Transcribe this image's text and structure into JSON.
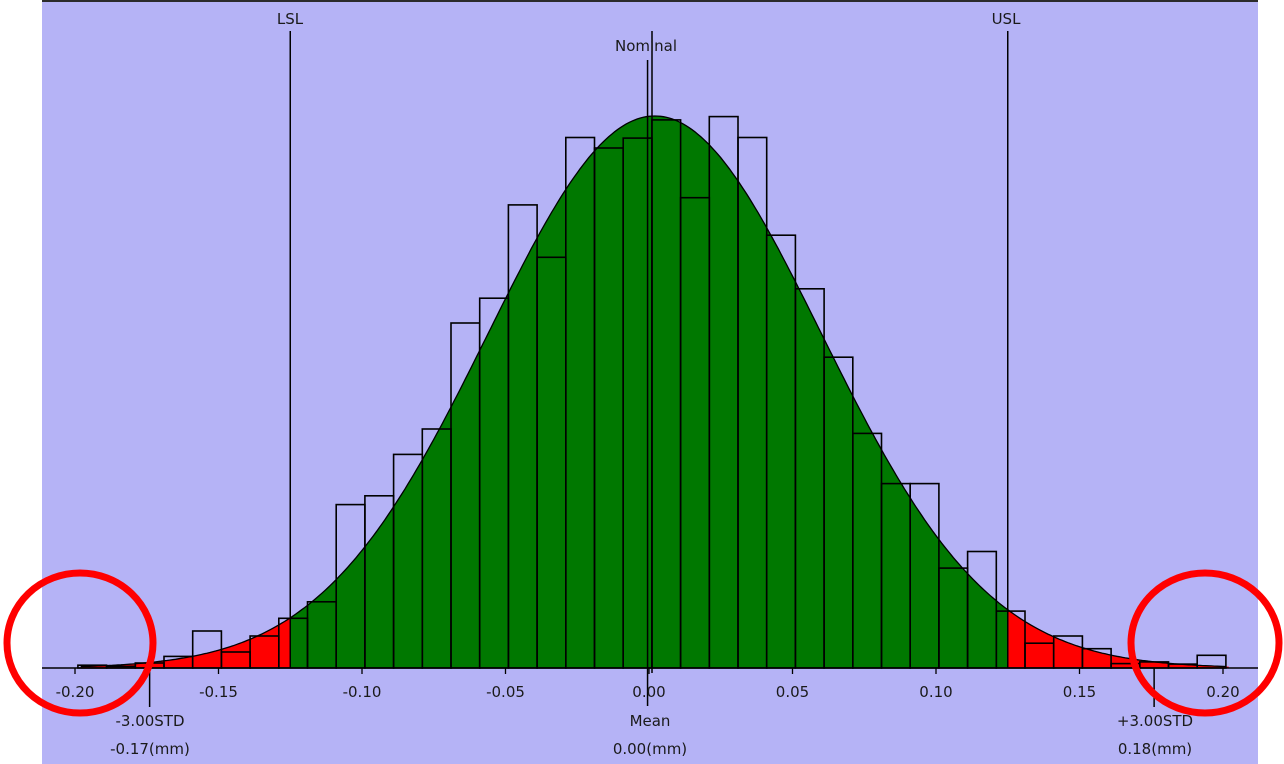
{
  "chart_data": {
    "type": "bar",
    "subtype": "histogram-with-normal-curve",
    "title": "",
    "xlabel": "",
    "ylabel": "",
    "xlim": [
      -0.2,
      0.2
    ],
    "x_ticks": [
      "-0.20",
      "-0.15",
      "-0.10",
      "-0.05",
      "0.00",
      "0.05",
      "0.10",
      "0.15",
      "0.20"
    ],
    "x_tick_values": [
      -0.2,
      -0.15,
      -0.1,
      -0.05,
      0.0,
      0.05,
      0.1,
      0.15,
      0.2
    ],
    "grid": false,
    "bin_width": 0.01,
    "bin_start": -0.199,
    "values_relative_to_curve_peak": [
      0.005,
      0.003,
      0.009,
      0.021,
      0.067,
      0.029,
      0.058,
      0.09,
      0.12,
      0.296,
      0.312,
      0.387,
      0.433,
      0.625,
      0.67,
      0.839,
      0.744,
      0.961,
      0.942,
      0.96,
      0.993,
      0.852,
      0.999,
      0.961,
      0.784,
      0.687,
      0.563,
      0.425,
      0.334,
      0.334,
      0.181,
      0.211,
      0.103,
      0.045,
      0.058,
      0.035,
      0.008,
      0.011,
      0.007,
      0.023
    ],
    "normal_curve": {
      "mean": 0.002,
      "std": 0.058
    },
    "markers": {
      "lsl": {
        "label": "LSL",
        "value": -0.125
      },
      "usl": {
        "label": "USL",
        "value": 0.125
      },
      "nominal": {
        "label": "Nominal",
        "value": 0.0
      }
    },
    "bottom_markers": {
      "minus3": {
        "label": "-3.00STD",
        "value_text": "-0.17(mm)",
        "value": -0.174
      },
      "mean": {
        "label": "Mean",
        "value_text": "0.00(mm)",
        "value": -0.0005
      },
      "plus3": {
        "label": "+3.00STD",
        "value_text": "0.18(mm)",
        "value": 0.176
      }
    },
    "annotations": [
      {
        "shape": "circle",
        "around": "left tail near -0.20"
      },
      {
        "shape": "circle",
        "around": "right tail near 0.20"
      }
    ],
    "colors": {
      "background": "#b5b3f6",
      "in_spec": "#007800",
      "out_of_spec": "#ff0000",
      "outline": "#000000",
      "annotation": "#ff0000"
    }
  }
}
